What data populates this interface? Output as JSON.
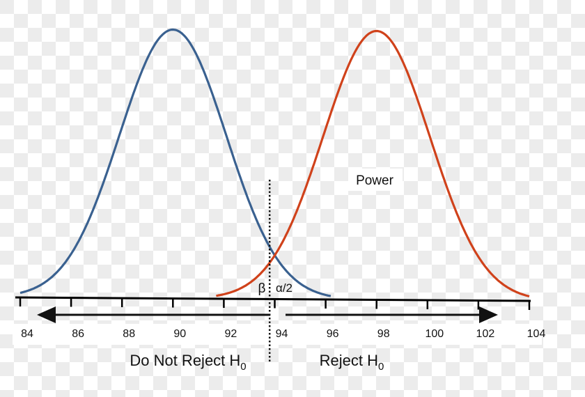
{
  "chart_data": {
    "type": "line",
    "x_ticks": [
      84,
      86,
      88,
      90,
      92,
      94,
      96,
      98,
      100,
      102,
      104
    ],
    "xlim": [
      84,
      104
    ],
    "grid": false,
    "series": [
      {
        "mean": 90,
        "sd": 2.1,
        "x_range": [
          84,
          96.2
        ],
        "color": "#3a6190"
      },
      {
        "mean": 98,
        "sd": 2.1,
        "x_range": [
          91.7,
          104
        ],
        "color": "#d0421b"
      }
    ],
    "critical_value": 93.8,
    "annotations": {
      "power": "Power",
      "beta": "β",
      "alpha_half": "α/2",
      "do_not_reject": "Do Not Reject H",
      "reject": "Reject H",
      "subscript": "0"
    }
  }
}
